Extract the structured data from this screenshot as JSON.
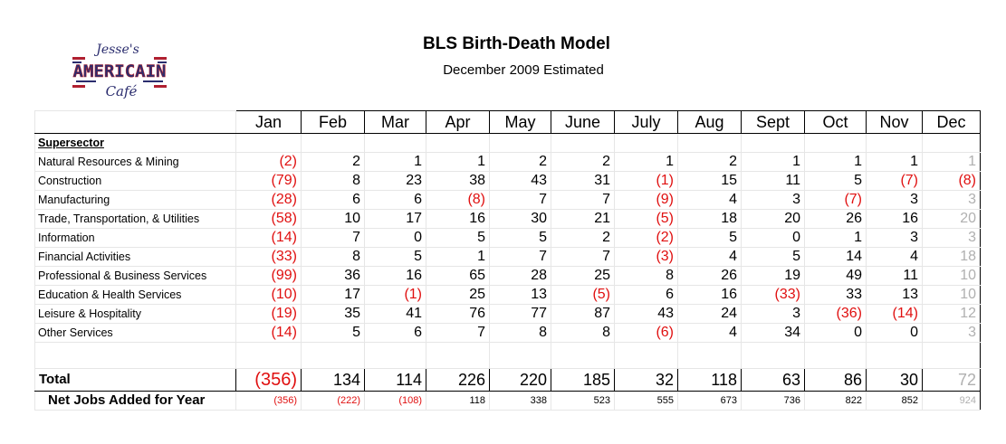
{
  "header": {
    "title": "BLS Birth-Death Model",
    "subtitle": "December 2009 Estimated"
  },
  "logo": {
    "line1": "Jesse's",
    "line2": "AMERICAIN",
    "line3": "Café"
  },
  "table": {
    "months": [
      "Jan",
      "Feb",
      "Mar",
      "Apr",
      "May",
      "June",
      "July",
      "Aug",
      "Sept",
      "Oct",
      "Nov",
      "Dec"
    ],
    "supersector_label": "Supersector",
    "rows": [
      {
        "label": "Natural Resources & Mining",
        "values": [
          "(2)",
          "2",
          "1",
          "1",
          "2",
          "2",
          "1",
          "2",
          "1",
          "1",
          "1",
          "1"
        ]
      },
      {
        "label": "Construction",
        "values": [
          "(79)",
          "8",
          "23",
          "38",
          "43",
          "31",
          "(1)",
          "15",
          "11",
          "5",
          "(7)",
          "(8)"
        ]
      },
      {
        "label": "Manufacturing",
        "values": [
          "(28)",
          "6",
          "6",
          "(8)",
          "7",
          "7",
          "(9)",
          "4",
          "3",
          "(7)",
          "3",
          "3"
        ]
      },
      {
        "label": "Trade, Transportation, & Utilities",
        "values": [
          "(58)",
          "10",
          "17",
          "16",
          "30",
          "21",
          "(5)",
          "18",
          "20",
          "26",
          "16",
          "20"
        ]
      },
      {
        "label": "Information",
        "values": [
          "(14)",
          "7",
          "0",
          "5",
          "5",
          "2",
          "(2)",
          "5",
          "0",
          "1",
          "3",
          "3"
        ]
      },
      {
        "label": "Financial Activities",
        "values": [
          "(33)",
          "8",
          "5",
          "1",
          "7",
          "7",
          "(3)",
          "4",
          "5",
          "14",
          "4",
          "18"
        ]
      },
      {
        "label": "Professional & Business Services",
        "values": [
          "(99)",
          "36",
          "16",
          "65",
          "28",
          "25",
          "8",
          "26",
          "19",
          "49",
          "11",
          "10"
        ]
      },
      {
        "label": "Education & Health Services",
        "values": [
          "(10)",
          "17",
          "(1)",
          "25",
          "13",
          "(5)",
          "6",
          "16",
          "(33)",
          "33",
          "13",
          "10"
        ]
      },
      {
        "label": "Leisure & Hospitality",
        "values": [
          "(19)",
          "35",
          "41",
          "76",
          "77",
          "87",
          "43",
          "24",
          "3",
          "(36)",
          "(14)",
          "12"
        ]
      },
      {
        "label": "Other Services",
        "values": [
          "(14)",
          "5",
          "6",
          "7",
          "8",
          "8",
          "(6)",
          "4",
          "34",
          "0",
          "0",
          "3"
        ]
      }
    ],
    "total": {
      "label": "Total",
      "values": [
        "(356)",
        "134",
        "114",
        "226",
        "220",
        "185",
        "32",
        "118",
        "63",
        "86",
        "30",
        "72"
      ]
    },
    "net": {
      "label": "Net Jobs Added for Year",
      "values": [
        "(356)",
        "(222)",
        "(108)",
        "118",
        "338",
        "523",
        "555",
        "673",
        "736",
        "822",
        "852",
        "924"
      ]
    }
  },
  "colors": {
    "negative": "#e01010",
    "estimated": "#b0b0b0"
  }
}
